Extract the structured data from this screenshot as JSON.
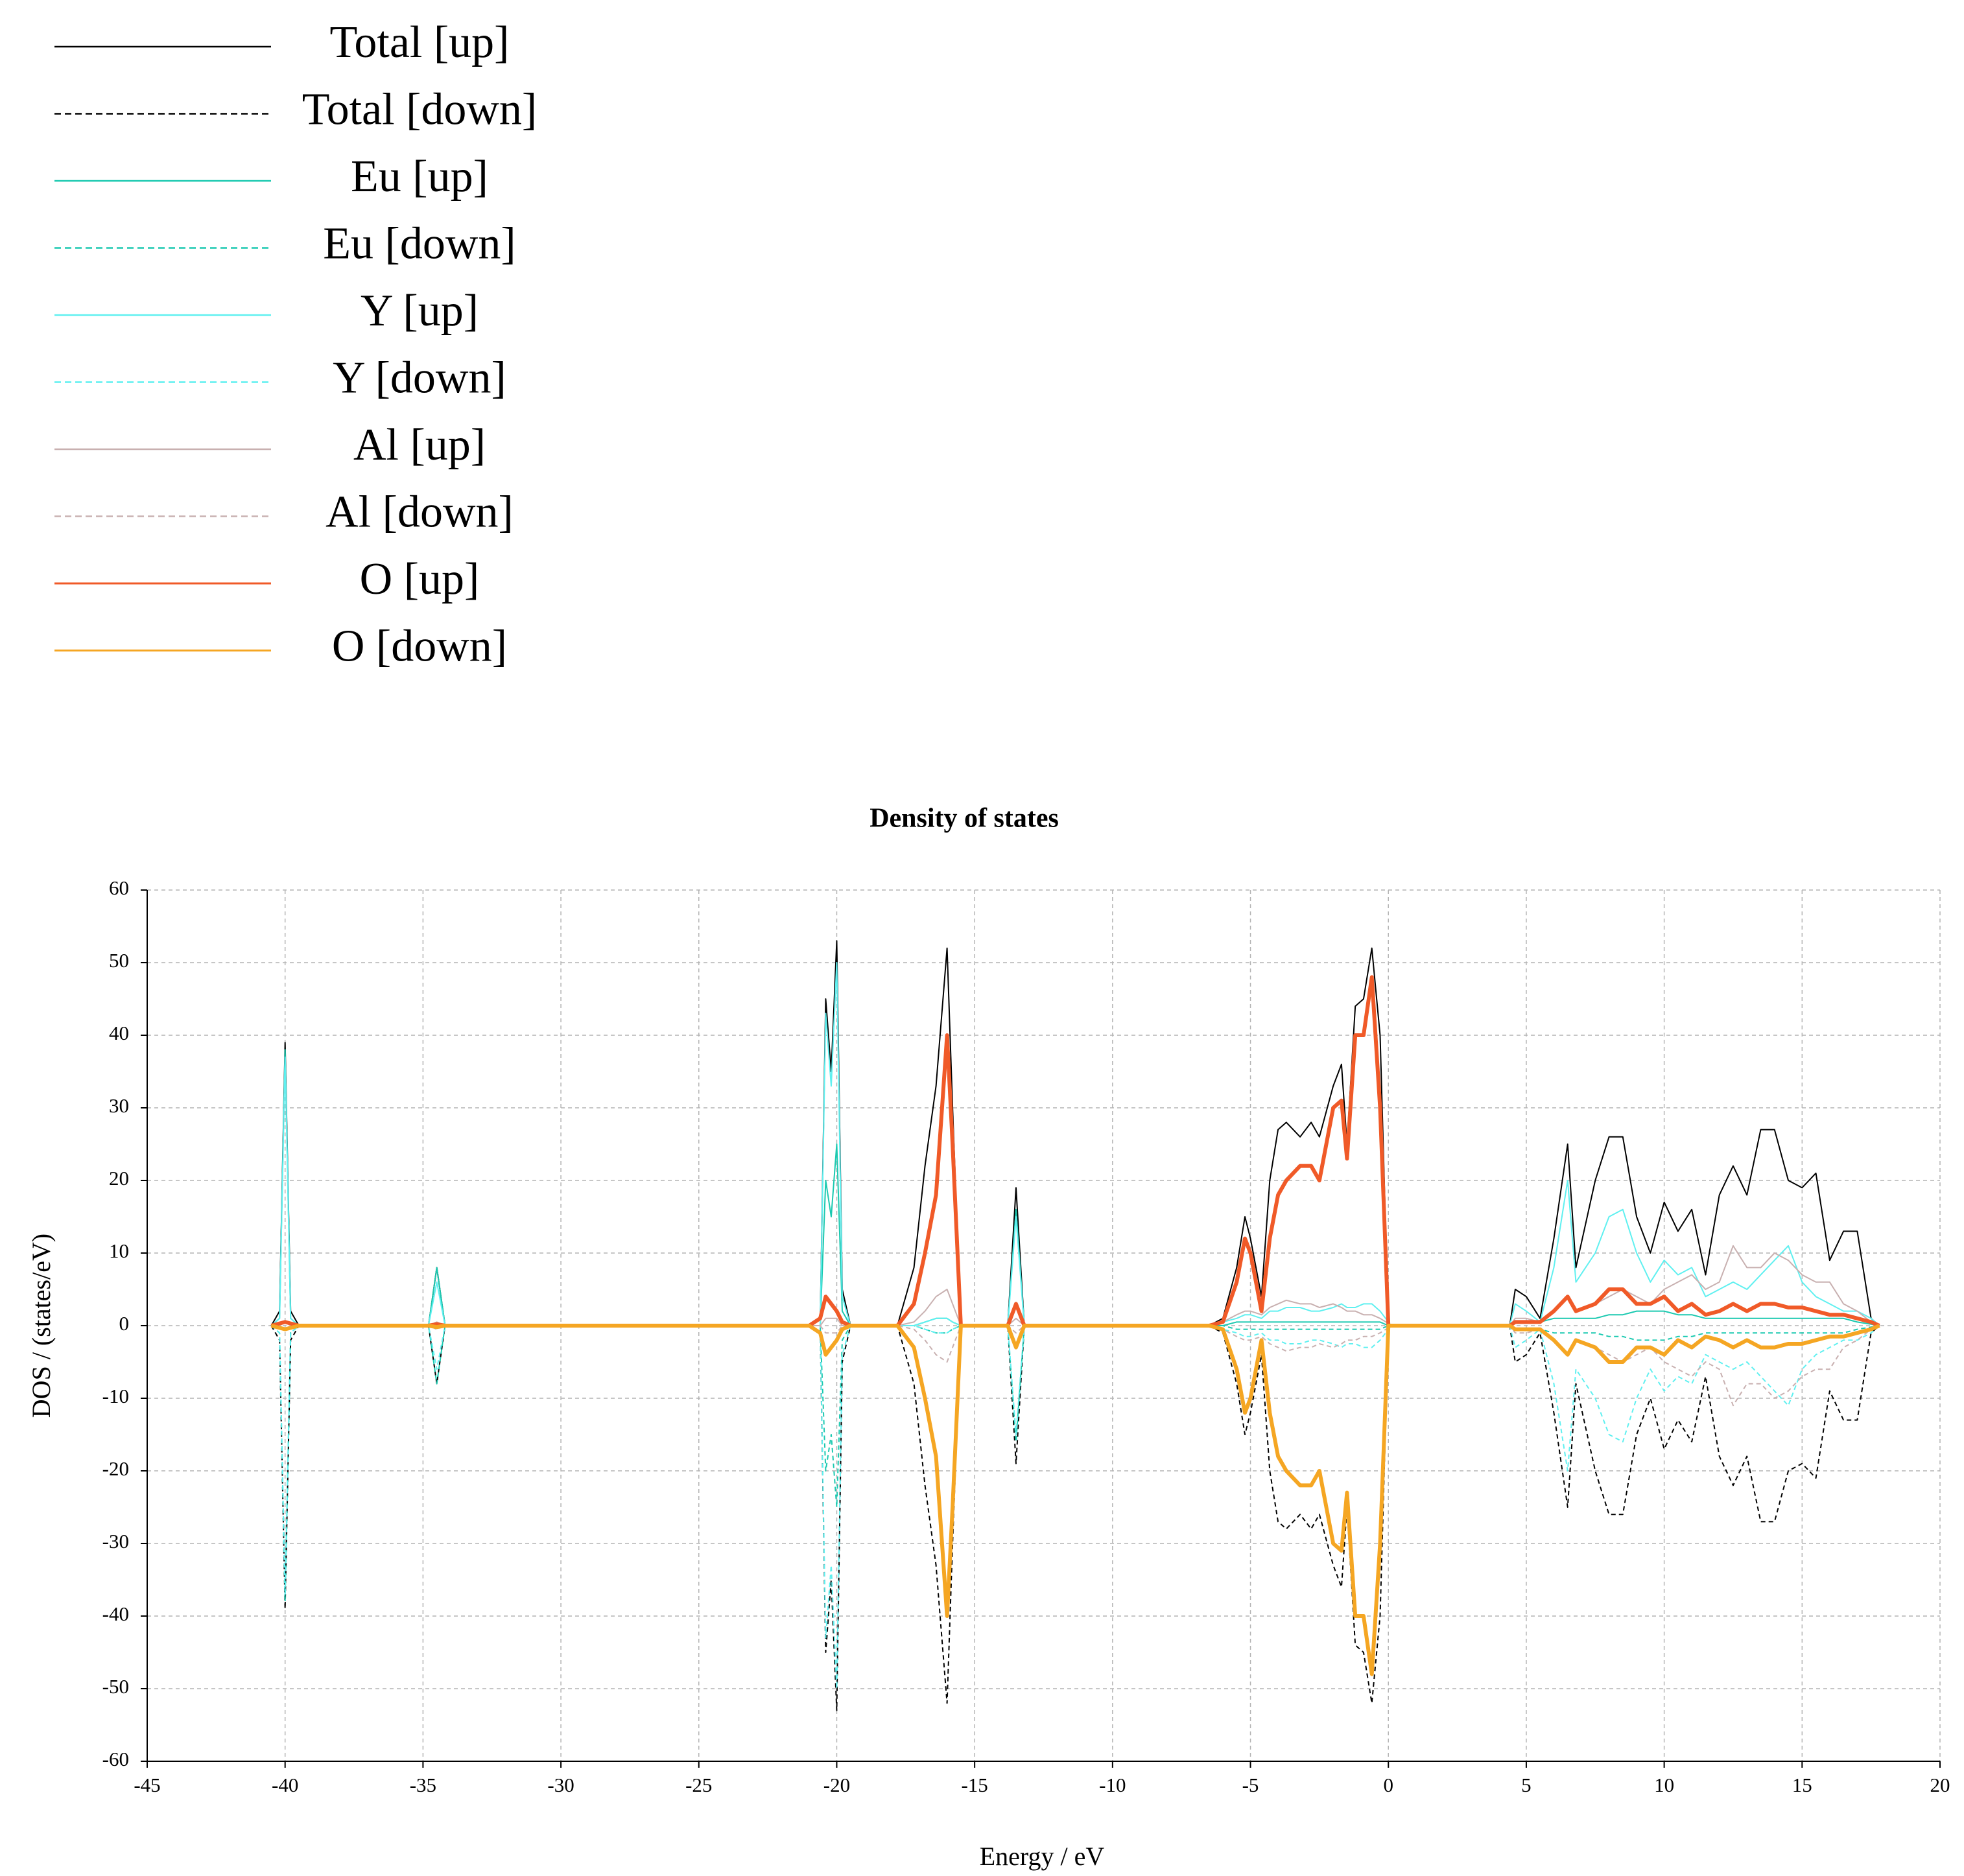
{
  "chart_data": {
    "type": "line",
    "title": "Density of states",
    "xlabel": "Energy / eV",
    "ylabel": "DOS / (states/eV)",
    "legend": "top-left",
    "grid": true,
    "xlim": [
      -45,
      20
    ],
    "xticks": [
      -45,
      -40,
      -35,
      -30,
      -25,
      -20,
      -15,
      -10,
      -5,
      0,
      5,
      10,
      15,
      20
    ],
    "ylim": [
      -60,
      60
    ],
    "yticks": [
      -60,
      -50,
      -40,
      -30,
      -20,
      -10,
      0,
      10,
      20,
      30,
      40,
      50,
      60
    ],
    "x": [
      -40.5,
      -40.2,
      -40,
      -39.8,
      -39.5,
      -34.8,
      -34.5,
      -34.2,
      -21,
      -20.6,
      -20.4,
      -20.2,
      -20,
      -19.8,
      -19.5,
      -17.8,
      -17.2,
      -16.8,
      -16.4,
      -16,
      -15.8,
      -15.5,
      -13.8,
      -13.5,
      -13.2,
      -6.5,
      -6,
      -5.5,
      -5.2,
      -5,
      -4.6,
      -4.3,
      -4,
      -3.7,
      -3.2,
      -2.8,
      -2.5,
      -2,
      -1.7,
      -1.5,
      -1.2,
      -0.9,
      -0.6,
      -0.3,
      0,
      0.1,
      4.4,
      4.6,
      5,
      5.5,
      6,
      6.5,
      6.8,
      7.5,
      8,
      8.5,
      9,
      9.5,
      10,
      10.5,
      11,
      11.5,
      12,
      12.5,
      13,
      13.5,
      14,
      14.5,
      15,
      15.5,
      16,
      16.5,
      17,
      17.5,
      17.8
    ],
    "series": [
      {
        "name": "Total [up]",
        "color": "#000000",
        "dash": false,
        "line_width": 2,
        "values": [
          0,
          2,
          39,
          2,
          0,
          0,
          8,
          0,
          0,
          0,
          45,
          35,
          53,
          5,
          0,
          0,
          8,
          22,
          33,
          52,
          30,
          0,
          0,
          19,
          0,
          0,
          1,
          8,
          15,
          12,
          4,
          20,
          27,
          28,
          26,
          28,
          26,
          33,
          36,
          25,
          44,
          45,
          52,
          40,
          0,
          0,
          0,
          5,
          4,
          1,
          12,
          25,
          8,
          20,
          26,
          26,
          15,
          10,
          17,
          13,
          16,
          7,
          18,
          22,
          18,
          27,
          27,
          20,
          19,
          21,
          9,
          13,
          13,
          1,
          0
        ]
      },
      {
        "name": "Total [down]",
        "color": "#000000",
        "dash": true,
        "line_width": 2,
        "values": [
          0,
          -2,
          -39,
          -2,
          0,
          0,
          -8,
          0,
          0,
          0,
          -45,
          -35,
          -53,
          -5,
          0,
          0,
          -8,
          -22,
          -33,
          -52,
          -30,
          0,
          0,
          -19,
          0,
          0,
          -1,
          -8,
          -15,
          -12,
          -4,
          -20,
          -27,
          -28,
          -26,
          -28,
          -26,
          -33,
          -36,
          -25,
          -44,
          -45,
          -52,
          -40,
          0,
          0,
          0,
          -5,
          -4,
          -1,
          -12,
          -25,
          -8,
          -20,
          -26,
          -26,
          -15,
          -10,
          -17,
          -13,
          -16,
          -7,
          -18,
          -22,
          -18,
          -27,
          -27,
          -20,
          -19,
          -21,
          -9,
          -13,
          -13,
          -1,
          0
        ]
      },
      {
        "name": "Eu [up]",
        "color": "#1bc9b0",
        "dash": false,
        "line_width": 2,
        "values": [
          0,
          1,
          38,
          1,
          0,
          0,
          8,
          0,
          0,
          0,
          20,
          15,
          25,
          2,
          0,
          0,
          0,
          0.5,
          1,
          1,
          0.5,
          0,
          0,
          16,
          0,
          0,
          0,
          0.5,
          0.5,
          0.5,
          0.5,
          0.5,
          0.5,
          0.5,
          0.5,
          0.5,
          0.5,
          0.5,
          0.5,
          0.5,
          0.5,
          0.5,
          0.5,
          0.5,
          0,
          0,
          0,
          0.5,
          0.5,
          0.5,
          1,
          1,
          1,
          1,
          1.5,
          1.5,
          2,
          2,
          2,
          1.5,
          1.5,
          1,
          1,
          1,
          1,
          1,
          1,
          1,
          1,
          1,
          1,
          1,
          0.5,
          0.2,
          0
        ]
      },
      {
        "name": "Eu [down]",
        "color": "#1bc9b0",
        "dash": true,
        "line_width": 2,
        "values": [
          0,
          -1,
          -38,
          -1,
          0,
          0,
          -8,
          0,
          0,
          0,
          -20,
          -15,
          -25,
          -2,
          0,
          0,
          0,
          -0.5,
          -1,
          -1,
          -0.5,
          0,
          0,
          -16,
          0,
          0,
          0,
          -0.5,
          -0.5,
          -0.5,
          -0.5,
          -0.5,
          -0.5,
          -0.5,
          -0.5,
          -0.5,
          -0.5,
          -0.5,
          -0.5,
          -0.5,
          -0.5,
          -0.5,
          -0.5,
          -0.5,
          0,
          0,
          0,
          -0.5,
          -0.5,
          -0.5,
          -1,
          -1,
          -1,
          -1,
          -1.5,
          -1.5,
          -2,
          -2,
          -2,
          -1.5,
          -1.5,
          -1,
          -1,
          -1,
          -1,
          -1,
          -1,
          -1,
          -1,
          -1,
          -1,
          -1,
          -0.5,
          -0.2,
          0
        ]
      },
      {
        "name": "Y [up]",
        "color": "#5ff0f0",
        "dash": false,
        "line_width": 2,
        "values": [
          0,
          1,
          37,
          1,
          0,
          0,
          6,
          0,
          0,
          0,
          43,
          33,
          50,
          4,
          0,
          0,
          0,
          0.5,
          1,
          1,
          0.5,
          0,
          0,
          15,
          0,
          0,
          0.5,
          1,
          1.5,
          1.5,
          1,
          2,
          2,
          2.5,
          2.5,
          2,
          2,
          2.5,
          3,
          2.5,
          2.5,
          3,
          3,
          2,
          0.5,
          0,
          0,
          3,
          2,
          0.5,
          8,
          20,
          6,
          10,
          15,
          16,
          10,
          6,
          9,
          7,
          8,
          4,
          5,
          6,
          5,
          7,
          9,
          11,
          6,
          4,
          3,
          2,
          2,
          1,
          0
        ]
      },
      {
        "name": "Y [down]",
        "color": "#5ff0f0",
        "dash": true,
        "line_width": 2,
        "values": [
          0,
          -1,
          -37,
          -1,
          0,
          0,
          -6,
          0,
          0,
          0,
          -43,
          -33,
          -50,
          -4,
          0,
          0,
          0,
          -0.5,
          -1,
          -1,
          -0.5,
          0,
          0,
          -15,
          0,
          0,
          -0.5,
          -1,
          -1.5,
          -1.5,
          -1,
          -2,
          -2,
          -2.5,
          -2.5,
          -2,
          -2,
          -2.5,
          -3,
          -2.5,
          -2.5,
          -3,
          -3,
          -2,
          -0.5,
          0,
          0,
          -3,
          -2,
          -0.5,
          -8,
          -20,
          -6,
          -10,
          -15,
          -16,
          -10,
          -6,
          -9,
          -7,
          -8,
          -4,
          -5,
          -6,
          -5,
          -7,
          -9,
          -11,
          -6,
          -4,
          -3,
          -2,
          -2,
          -1,
          0
        ]
      },
      {
        "name": "Al [up]",
        "color": "#c8b0b0",
        "dash": false,
        "line_width": 2,
        "values": [
          0,
          0,
          0.5,
          0,
          0,
          0,
          0.5,
          0,
          0,
          0,
          1,
          1,
          1,
          0,
          0,
          0,
          0.5,
          2,
          4,
          5,
          3,
          0,
          0,
          1,
          0,
          0,
          0.5,
          1.5,
          2,
          2,
          1.5,
          2.5,
          3,
          3.5,
          3,
          3,
          2.5,
          3,
          2.5,
          2,
          2,
          1.5,
          1.5,
          1,
          0.3,
          0,
          0,
          1,
          1,
          0.5,
          2,
          4,
          2,
          3,
          4,
          5,
          4,
          3,
          5,
          6,
          7,
          5,
          6,
          11,
          8,
          8,
          10,
          9,
          7,
          6,
          6,
          3,
          2,
          0.5,
          0
        ]
      },
      {
        "name": "Al [down]",
        "color": "#c8b0b0",
        "dash": true,
        "line_width": 2,
        "values": [
          0,
          0,
          -0.5,
          0,
          0,
          0,
          -0.5,
          0,
          0,
          0,
          -1,
          -1,
          -1,
          0,
          0,
          0,
          -0.5,
          -2,
          -4,
          -5,
          -3,
          0,
          0,
          -1,
          0,
          0,
          -0.5,
          -1.5,
          -2,
          -2,
          -1.5,
          -2.5,
          -3,
          -3.5,
          -3,
          -3,
          -2.5,
          -3,
          -2.5,
          -2,
          -2,
          -1.5,
          -1.5,
          -1,
          -0.3,
          0,
          0,
          -1,
          -1,
          -0.5,
          -2,
          -4,
          -2,
          -3,
          -4,
          -5,
          -4,
          -3,
          -5,
          -6,
          -7,
          -5,
          -6,
          -11,
          -8,
          -8,
          -10,
          -9,
          -7,
          -6,
          -6,
          -3,
          -2,
          -0.5,
          0
        ]
      },
      {
        "name": "O [up]",
        "color": "#f05a28",
        "dash": false,
        "line_width": 6,
        "values": [
          0,
          0.3,
          0.5,
          0.3,
          0,
          0,
          0.2,
          0,
          0,
          1,
          4,
          3,
          2,
          0.5,
          0,
          0,
          3,
          10,
          18,
          40,
          25,
          0,
          0,
          3,
          0,
          0,
          0.5,
          6,
          12,
          10,
          2,
          12,
          18,
          20,
          22,
          22,
          20,
          30,
          31,
          23,
          40,
          40,
          48,
          30,
          0,
          0,
          0,
          0.5,
          0.5,
          0.5,
          2,
          4,
          2,
          3,
          5,
          5,
          3,
          3,
          4,
          2,
          3,
          1.5,
          2,
          3,
          2,
          3,
          3,
          2.5,
          2.5,
          2,
          1.5,
          1.5,
          1,
          0.5,
          0
        ]
      },
      {
        "name": "O [down]",
        "color": "#f5a623",
        "dash": false,
        "line_width": 6,
        "values": [
          0,
          -0.3,
          -0.5,
          -0.3,
          0,
          0,
          -0.2,
          0,
          0,
          -1,
          -4,
          -3,
          -2,
          -0.5,
          0,
          0,
          -3,
          -10,
          -18,
          -40,
          -25,
          0,
          0,
          -3,
          0,
          0,
          -0.5,
          -6,
          -12,
          -10,
          -2,
          -12,
          -18,
          -20,
          -22,
          -22,
          -20,
          -30,
          -31,
          -23,
          -40,
          -40,
          -48,
          -30,
          0,
          0,
          0,
          -0.5,
          -0.5,
          -0.5,
          -2,
          -4,
          -2,
          -3,
          -5,
          -5,
          -3,
          -3,
          -4,
          -2,
          -3,
          -1.5,
          -2,
          -3,
          -2,
          -3,
          -3,
          -2.5,
          -2.5,
          -2,
          -1.5,
          -1.5,
          -1,
          -0.5,
          0
        ]
      }
    ]
  }
}
